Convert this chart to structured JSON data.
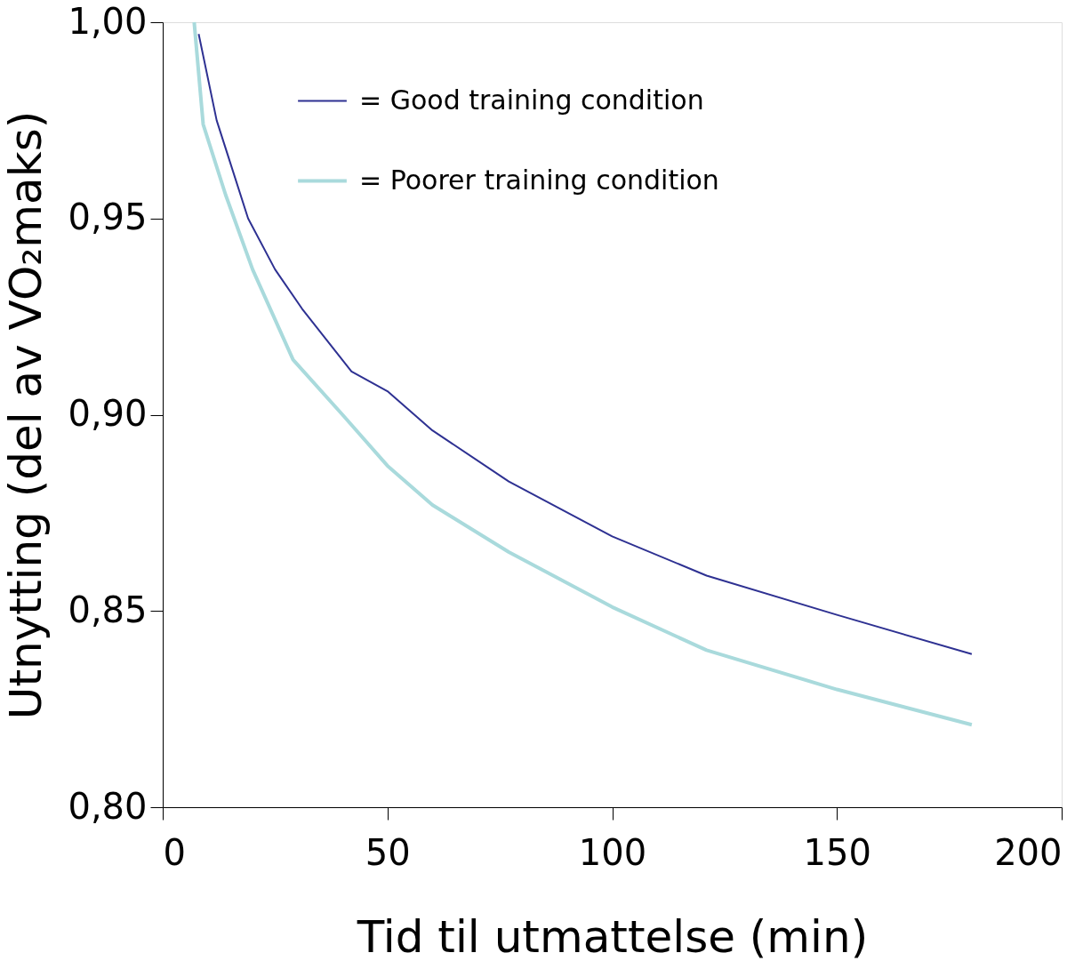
{
  "chart_data": {
    "type": "line",
    "xlabel": "Tid til utmattelse (min)",
    "ylabel": "Utnytting (del av VO₂maks)",
    "xlim": [
      0,
      200
    ],
    "xticks": [
      0,
      50,
      100,
      150,
      200
    ],
    "ylim": [
      0.8,
      1.0
    ],
    "yticks": [
      {
        "value": 0.8,
        "label": "0,80"
      },
      {
        "value": 0.85,
        "label": "0,85"
      },
      {
        "value": 0.9,
        "label": "0,90"
      },
      {
        "value": 0.95,
        "label": "0,95"
      },
      {
        "value": 1.0,
        "label": "1,00"
      }
    ],
    "grid": false,
    "legend": "top",
    "marker": "none",
    "line_style": "solid",
    "series": [
      {
        "name": "= Good training condition",
        "color": "#2e3192",
        "x": [
          8,
          12,
          19,
          25,
          31,
          42,
          50,
          60,
          77,
          100,
          121,
          150,
          180
        ],
        "values": [
          0.997,
          0.975,
          0.95,
          0.937,
          0.927,
          0.911,
          0.906,
          0.896,
          0.883,
          0.869,
          0.859,
          0.849,
          0.839
        ]
      },
      {
        "name": "= Poorer training condition",
        "color": "#a9dadc",
        "x": [
          7,
          9,
          14,
          20,
          29,
          40,
          50,
          60,
          77,
          100,
          121,
          150,
          180
        ],
        "values": [
          1.0,
          0.974,
          0.956,
          0.937,
          0.914,
          0.9,
          0.887,
          0.877,
          0.865,
          0.851,
          0.84,
          0.83,
          0.821
        ]
      }
    ]
  }
}
